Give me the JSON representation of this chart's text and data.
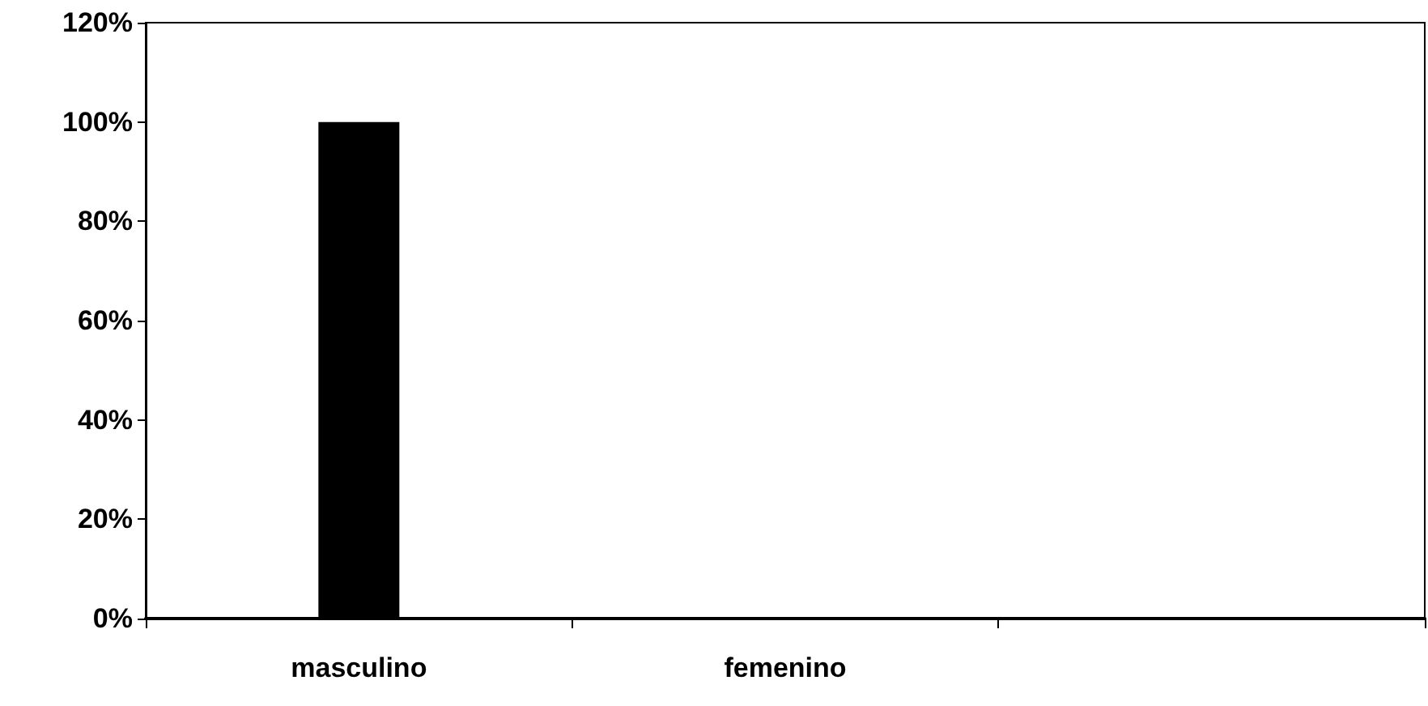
{
  "chart_data": {
    "type": "bar",
    "categories": [
      "masculino",
      "femenino",
      null
    ],
    "values": [
      100,
      0,
      0
    ],
    "color": "#000000",
    "ylim": [
      0,
      120
    ],
    "yticks": [
      {
        "value": 0,
        "label": "0%"
      },
      {
        "value": 20,
        "label": "20%"
      },
      {
        "value": 40,
        "label": "40%"
      },
      {
        "value": 60,
        "label": "60%"
      },
      {
        "value": 80,
        "label": "80%"
      },
      {
        "value": 100,
        "label": "100%"
      },
      {
        "value": 120,
        "label": "120%"
      }
    ],
    "grid": false
  }
}
